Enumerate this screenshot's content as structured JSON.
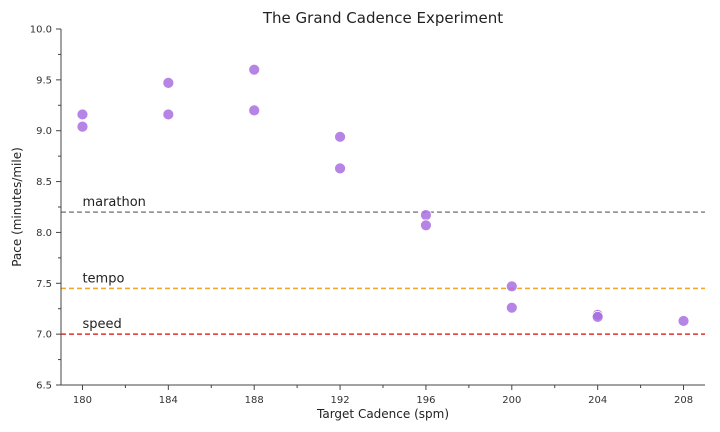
{
  "chart_data": {
    "type": "scatter",
    "title": "The Grand Cadence Experiment",
    "xlabel": "Target Cadence (spm)",
    "ylabel": "Pace (minutes/mile)",
    "xlim": [
      179,
      209
    ],
    "ylim": [
      6.5,
      10.0
    ],
    "xticks": [
      "180",
      "184",
      "188",
      "192",
      "196",
      "200",
      "204",
      "208"
    ],
    "yticks": [
      "6.5",
      "7.0",
      "7.5",
      "8.0",
      "8.5",
      "9.0",
      "9.5",
      "10.0"
    ],
    "grid": false,
    "marker_color": "#a86ee0",
    "points": [
      {
        "x": 180,
        "y": 9.16
      },
      {
        "x": 180,
        "y": 9.04
      },
      {
        "x": 184,
        "y": 9.47
      },
      {
        "x": 184,
        "y": 9.16
      },
      {
        "x": 188,
        "y": 9.6
      },
      {
        "x": 188,
        "y": 9.2
      },
      {
        "x": 192,
        "y": 8.94
      },
      {
        "x": 192,
        "y": 8.63
      },
      {
        "x": 196,
        "y": 8.17
      },
      {
        "x": 196,
        "y": 8.07
      },
      {
        "x": 200,
        "y": 7.47
      },
      {
        "x": 200,
        "y": 7.26
      },
      {
        "x": 204,
        "y": 7.19
      },
      {
        "x": 204,
        "y": 7.17
      },
      {
        "x": 208,
        "y": 7.13
      }
    ],
    "reference_lines": [
      {
        "label": "marathon",
        "y": 8.2,
        "color": "#888888"
      },
      {
        "label": "tempo",
        "y": 7.45,
        "color": "#f5a623"
      },
      {
        "label": "speed",
        "y": 7.0,
        "color": "#e03030"
      }
    ]
  }
}
